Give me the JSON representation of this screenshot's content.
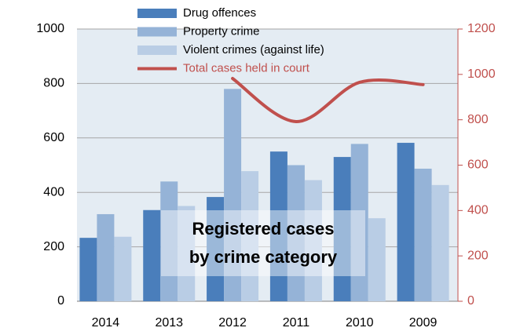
{
  "chart_data": {
    "type": "bar",
    "categories": [
      "2014",
      "2013",
      "2012",
      "2011",
      "2010",
      "2009"
    ],
    "series": [
      {
        "name": "Drug offences",
        "color": "#4a7ebb",
        "values": [
          233,
          335,
          383,
          550,
          530,
          582
        ]
      },
      {
        "name": "Property crime",
        "color": "#95b3d7",
        "values": [
          320,
          440,
          780,
          500,
          578,
          487
        ]
      },
      {
        "name": "Violent crimes (against life)",
        "color": "#b9cde5",
        "values": [
          237,
          350,
          478,
          445,
          305,
          427
        ]
      },
      {
        "name": "Total cases held in court",
        "color": "#c0504d",
        "type": "line",
        "axis": "y2",
        "values": [
          null,
          null,
          982,
          792,
          965,
          955
        ]
      }
    ],
    "ylim": [
      0,
      1000
    ],
    "yticks": [
      0,
      200,
      400,
      600,
      800,
      1000
    ],
    "y2lim": [
      0,
      1200
    ],
    "y2ticks": [
      0,
      200,
      400,
      600,
      800,
      1000,
      1200
    ],
    "grid": true,
    "annotation": [
      "Registered cases",
      "by crime category"
    ]
  }
}
